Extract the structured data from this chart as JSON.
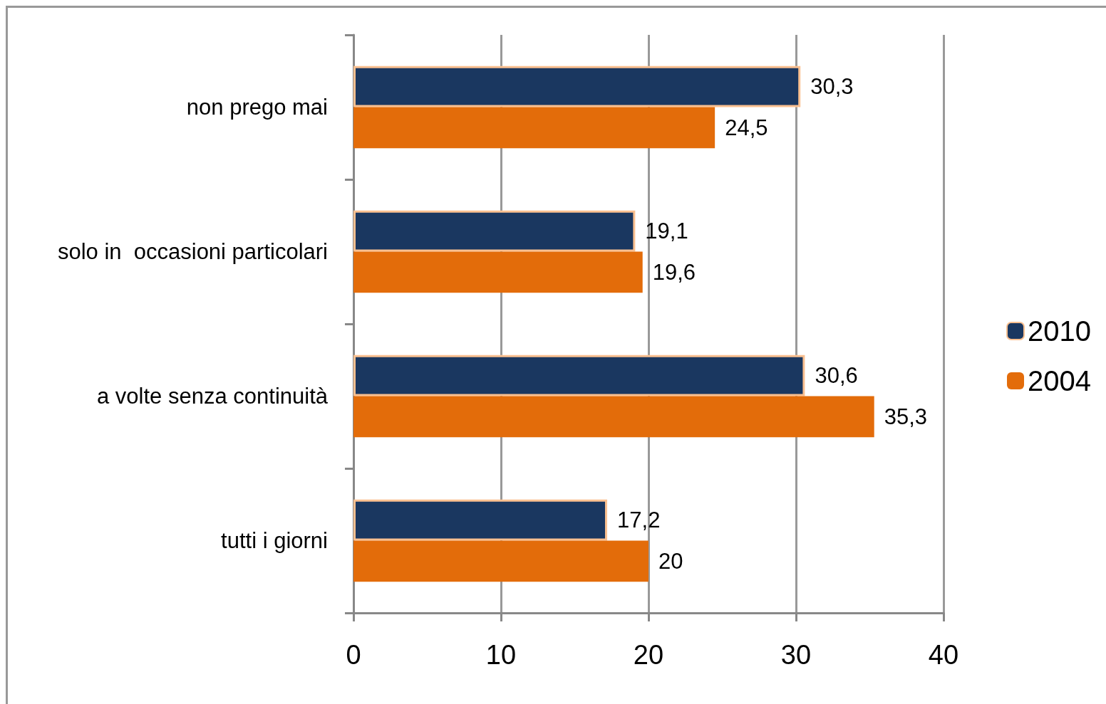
{
  "chart_data": {
    "type": "bar",
    "orientation": "horizontal",
    "categories": [
      "non prego mai",
      "solo in  occasioni particolari",
      "a volte senza continuità",
      "tutti i giorni"
    ],
    "series": [
      {
        "name": "2010",
        "color": "#1a3760",
        "values": [
          30.3,
          19.1,
          30.6,
          17.2
        ],
        "value_labels": [
          "30,3",
          "19,1",
          "30,6",
          "17,2"
        ]
      },
      {
        "name": "2004",
        "color": "#e36c0a",
        "values": [
          24.5,
          19.6,
          35.3,
          20
        ],
        "value_labels": [
          "24,5",
          "19,6",
          "35,3",
          "20"
        ]
      }
    ],
    "xlim": [
      0,
      40
    ],
    "xticks": [
      0,
      10,
      20,
      30,
      40
    ],
    "grid": "x",
    "legend": "right"
  }
}
